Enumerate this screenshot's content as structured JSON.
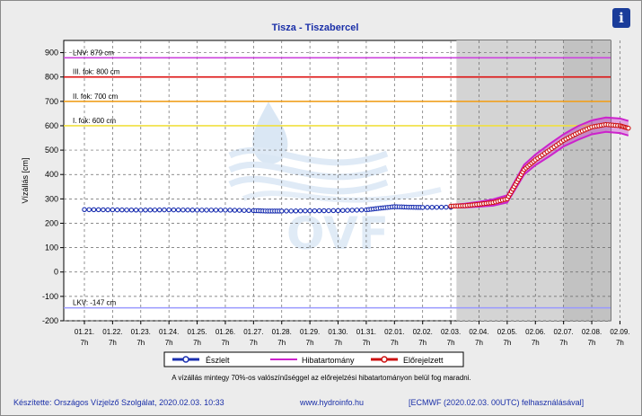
{
  "info_icon": "info-icon",
  "legend": {
    "observed": "Észlelt",
    "error_band": "Hibatartomány",
    "forecast": "Előrejelzett"
  },
  "note": "A vízállás mintegy 70%-os valószínűséggel az előrejelzési hibatartományon belül fog maradni.",
  "footer": {
    "left": "Készítette: Országos Vízjelző Szolgálat, 2020.02.03. 10:33",
    "center": "www.hydroinfo.hu",
    "right": "[ECMWF (2020.02.03. 00UTC) felhasználásával]"
  },
  "watermark": "OVF",
  "colors": {
    "observed": "#1a2fb0",
    "forecast": "#cc1111",
    "error_band": "#cc22cc",
    "lnv": "#cc44dd",
    "fok3": "#dd1111",
    "fok2": "#f0a020",
    "fok1": "#f0e040",
    "lkv": "#9999ff",
    "forecast_shade": "#d4d4d4",
    "far_shade": "#c2c2c2"
  },
  "chart_data": {
    "type": "line",
    "title": "Tisza - Tiszabercel",
    "ylabel": "Vízállás [cm]",
    "xlabel": "",
    "ylim": [
      -200,
      950
    ],
    "yticks": [
      -200,
      -100,
      0,
      100,
      200,
      300,
      400,
      500,
      600,
      700,
      800,
      900
    ],
    "xticks": [
      "01.21.",
      "01.22.",
      "01.23.",
      "01.24.",
      "01.25.",
      "01.26.",
      "01.27.",
      "01.28.",
      "01.29.",
      "01.30.",
      "01.31.",
      "02.01.",
      "02.02.",
      "02.03.",
      "02.04.",
      "02.05.",
      "02.06.",
      "02.07.",
      "02.08.",
      "02.09."
    ],
    "xtick_hour": "7h",
    "x_range_days": [
      0,
      19.4
    ],
    "grid": true,
    "legend_position": "bottom",
    "forecast_shade_from_day": 13.2,
    "far_forecast_shade_from_day": 17.0,
    "thresholds": [
      {
        "label": "LNV: 879 cm",
        "value": 879,
        "key": "lnv"
      },
      {
        "label": "III. fok: 800 cm",
        "value": 800,
        "key": "fok3"
      },
      {
        "label": "II. fok: 700 cm",
        "value": 700,
        "key": "fok2"
      },
      {
        "label": "I. fok: 600 cm",
        "value": 600,
        "key": "fok1"
      },
      {
        "label": "LKV: -147 cm",
        "value": -147,
        "key": "lkv"
      }
    ],
    "series": [
      {
        "name": "Észlelt",
        "key": "observed",
        "x": [
          0,
          1,
          2,
          3,
          4,
          5,
          6,
          6.5,
          7,
          8,
          9,
          10,
          10.5,
          11,
          11.5,
          12,
          13
        ],
        "y": [
          256,
          255,
          254,
          255,
          254,
          254,
          252,
          250,
          250,
          251,
          252,
          255,
          262,
          268,
          266,
          265,
          266
        ]
      },
      {
        "name": "Előrejelzett",
        "key": "forecast",
        "x": [
          13,
          13.5,
          14,
          14.5,
          15,
          15.3,
          15.6,
          16,
          16.5,
          17,
          17.5,
          18,
          18.5,
          19,
          19.3
        ],
        "y": [
          270,
          272,
          278,
          285,
          300,
          360,
          420,
          460,
          500,
          540,
          570,
          595,
          605,
          600,
          590
        ]
      },
      {
        "name": "Hibatartomány",
        "key": "error_band",
        "x": [
          13,
          13.5,
          14,
          14.5,
          15,
          15.3,
          15.6,
          16,
          16.5,
          17,
          17.5,
          18,
          18.5,
          19,
          19.3
        ],
        "upper": [
          275,
          280,
          288,
          298,
          315,
          378,
          440,
          482,
          525,
          565,
          598,
          622,
          634,
          630,
          620
        ],
        "lower": [
          265,
          265,
          268,
          272,
          285,
          342,
          400,
          438,
          475,
          515,
          542,
          565,
          575,
          570,
          560
        ]
      }
    ]
  }
}
